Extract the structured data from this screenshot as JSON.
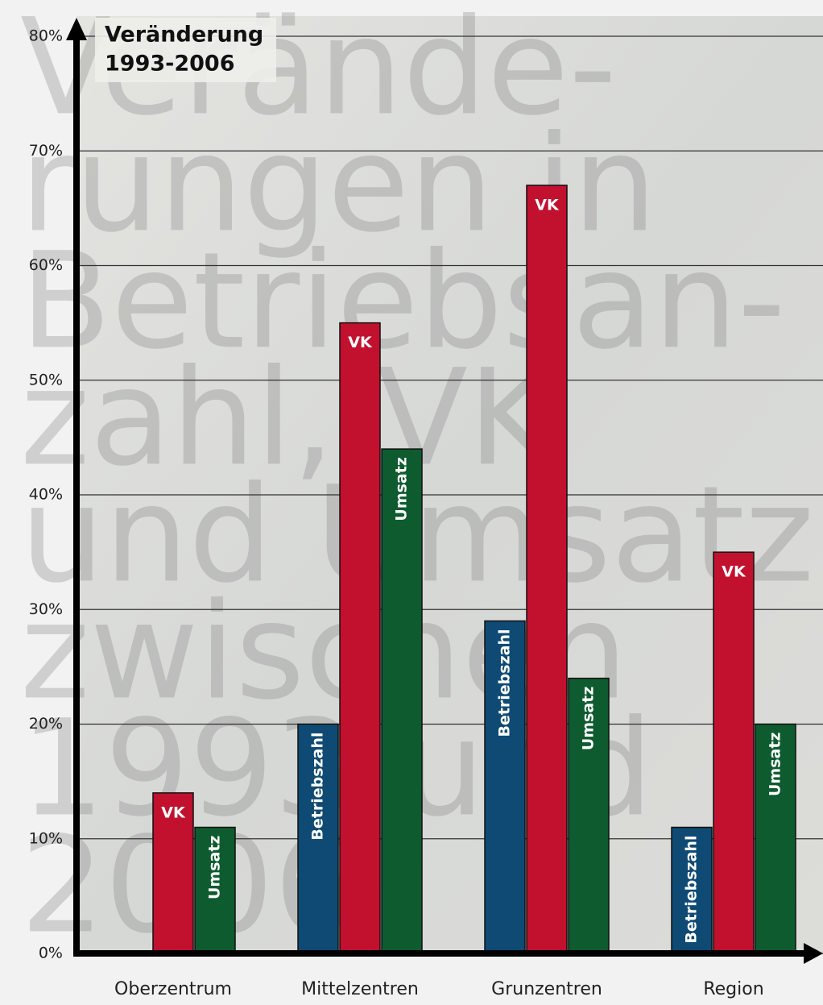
{
  "chart_data": {
    "type": "bar",
    "title": "Veränderung",
    "subtitle": "1993-2006",
    "watermark": [
      "Verände-",
      "rungen in",
      "Betriebsan-",
      "zahl, VK",
      "und Umsatz",
      "zwischen",
      "1993 und",
      "2006"
    ],
    "categories": [
      "Oberzentrum",
      "Mittelzentren",
      "Grunzentren",
      "Region"
    ],
    "series": [
      {
        "name": "Betriebszahl",
        "color": "#0f4a74",
        "values": [
          null,
          20,
          29,
          11
        ]
      },
      {
        "name": "VK",
        "color": "#c1112f",
        "values": [
          14,
          55,
          67,
          35
        ]
      },
      {
        "name": "Umsatz",
        "color": "#0e5b2f",
        "values": [
          11,
          44,
          24,
          20
        ]
      }
    ],
    "ylim": [
      0,
      80
    ],
    "yticks": [
      {
        "value": 0,
        "label": "0%"
      },
      {
        "value": 10,
        "label": "10%"
      },
      {
        "value": 20,
        "label": "20%"
      },
      {
        "value": 30,
        "label": "30%"
      },
      {
        "value": 40,
        "label": "40%"
      },
      {
        "value": 50,
        "label": "50%"
      },
      {
        "value": 60,
        "label": "60%"
      },
      {
        "value": 70,
        "label": "70%"
      },
      {
        "value": 80,
        "label": "80%"
      }
    ],
    "grid": true
  }
}
